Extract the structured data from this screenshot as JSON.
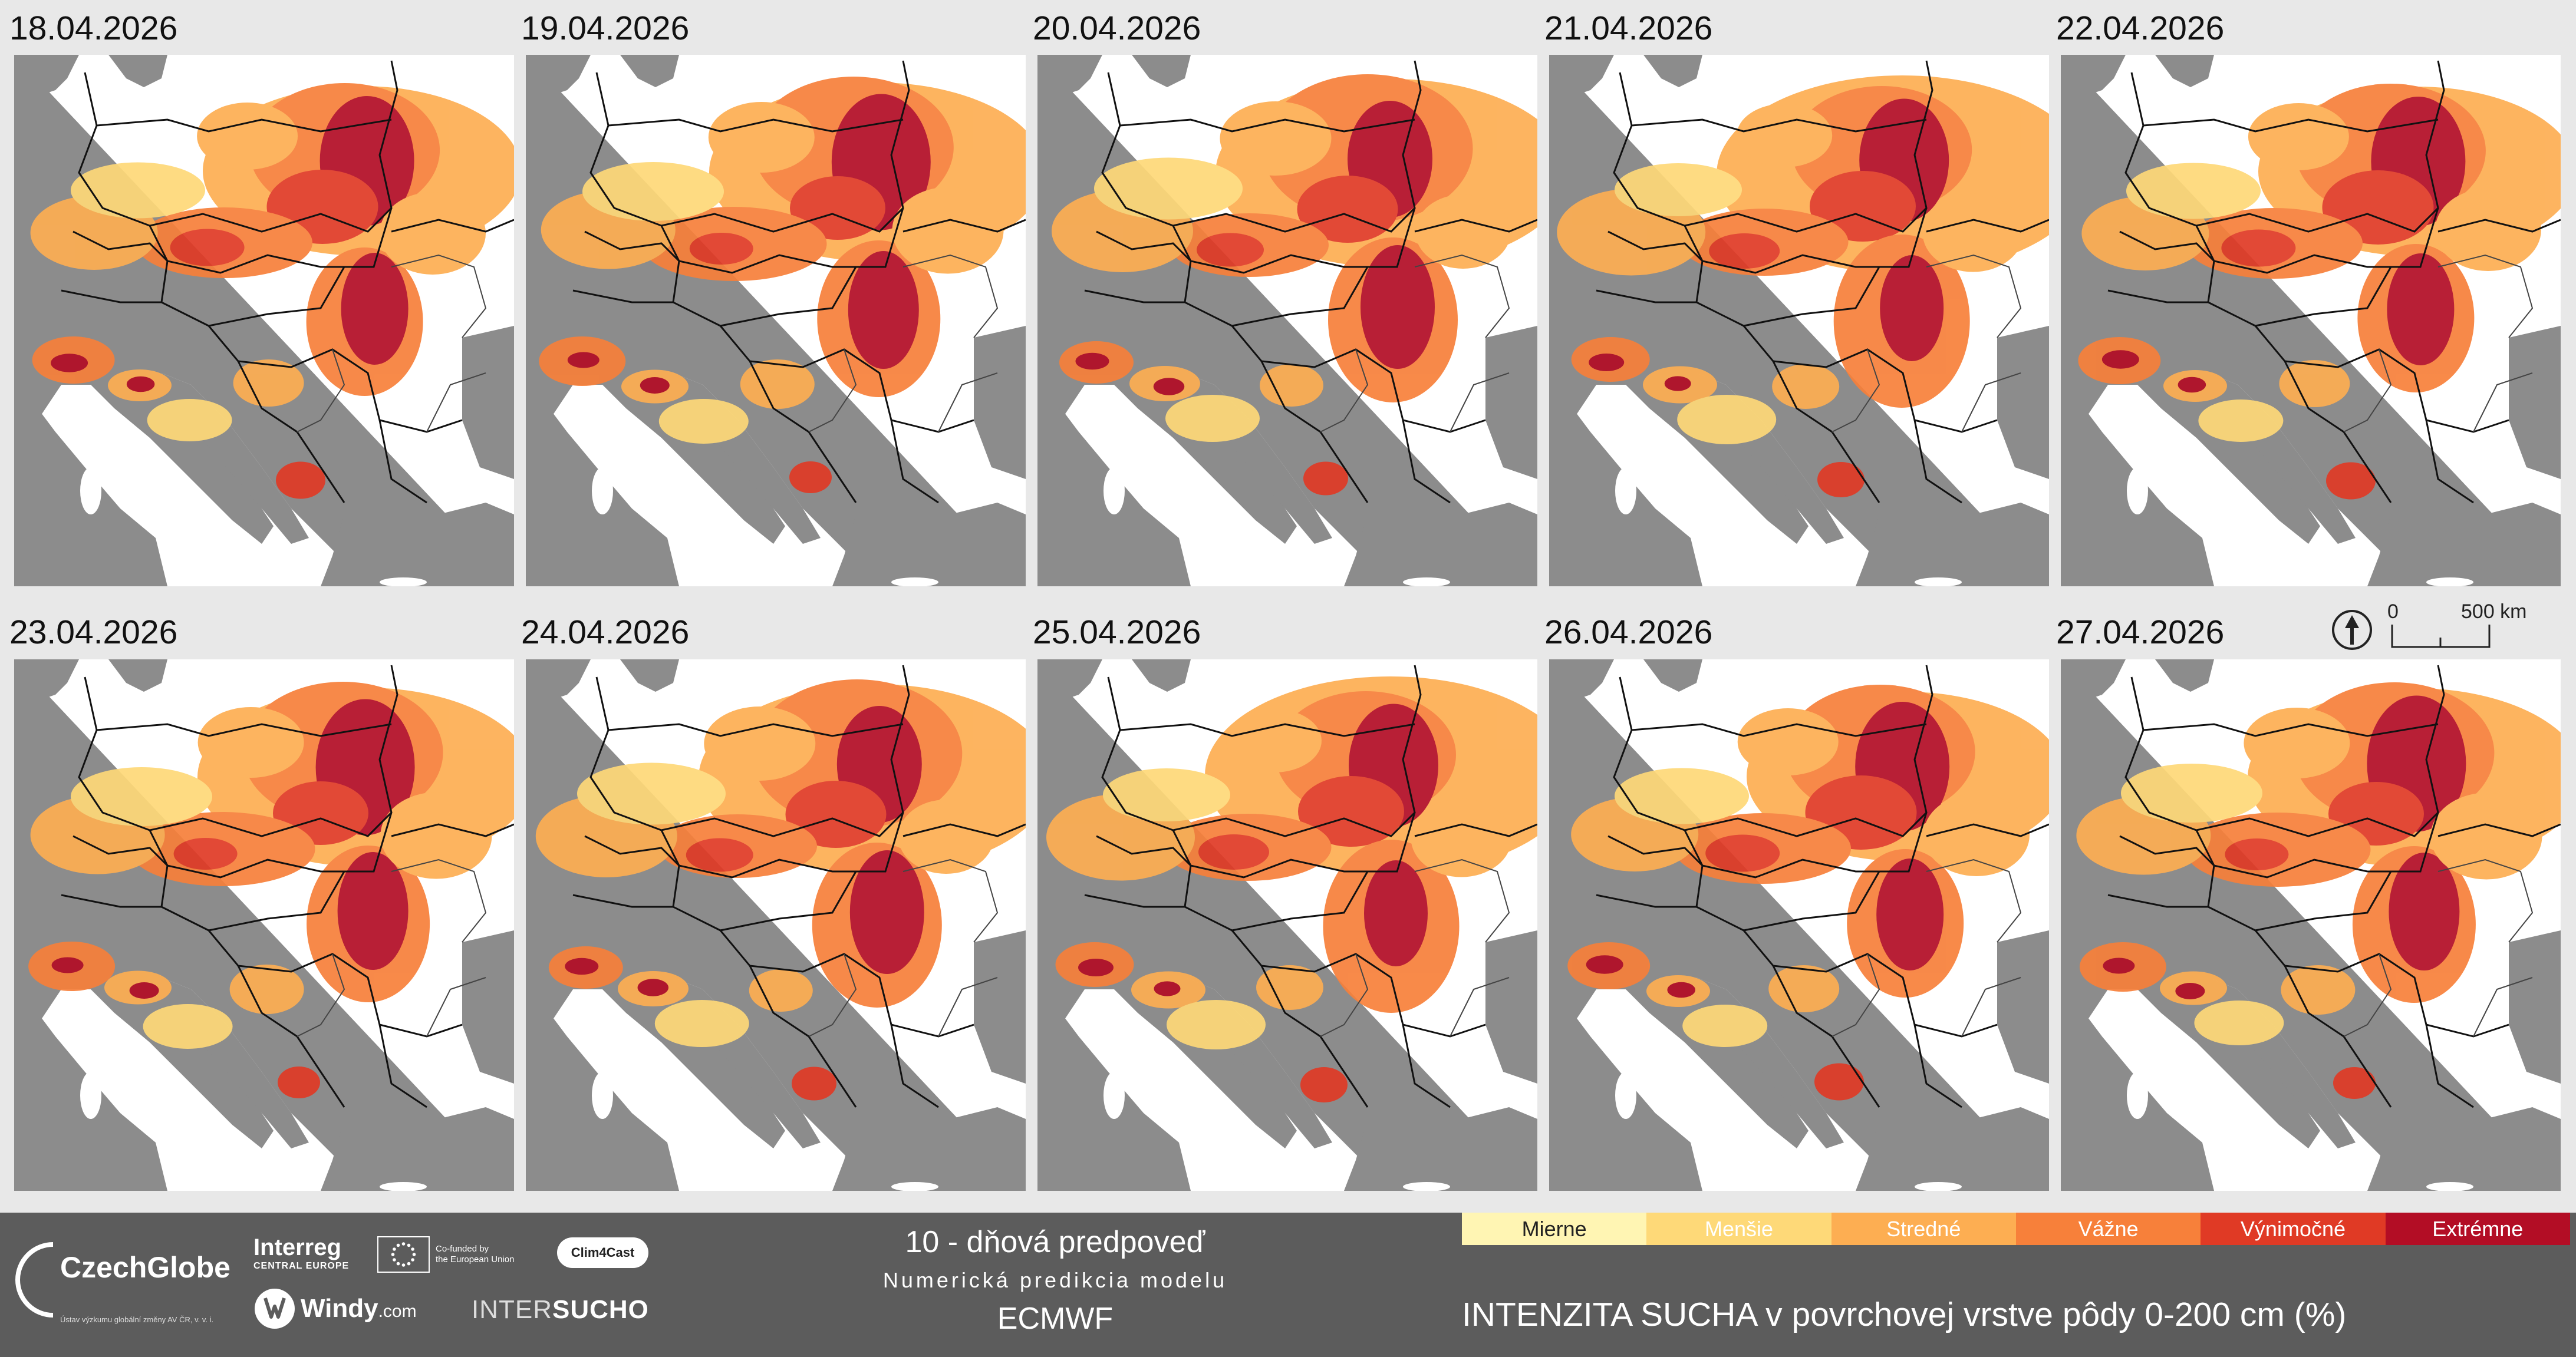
{
  "panels": [
    {
      "date": "18.04.2026"
    },
    {
      "date": "19.04.2026"
    },
    {
      "date": "20.04.2026"
    },
    {
      "date": "21.04.2026"
    },
    {
      "date": "22.04.2026"
    },
    {
      "date": "23.04.2026"
    },
    {
      "date": "24.04.2026"
    },
    {
      "date": "25.04.2026"
    },
    {
      "date": "26.04.2026"
    },
    {
      "date": "27.04.2026"
    }
  ],
  "scale": {
    "zero": "0",
    "distance": "500 km",
    "north_icon": "north-arrow-icon"
  },
  "footer": {
    "czechglobe": {
      "name": "CzechGlobe",
      "subtitle": "Ústav výzkumu globální změny AV ČR, v. v. i."
    },
    "interreg": {
      "name": "Interreg",
      "sub": "CENTRAL EUROPE"
    },
    "eu": {
      "line1": "Co-funded by",
      "line2": "the European Union"
    },
    "clim4cast": "Clim4Cast",
    "windy": {
      "name": "Windy",
      "suffix": ".com"
    },
    "intersucho": {
      "prefix": "INTER",
      "bold": "SUCHO"
    },
    "forecast": {
      "title": "10 - dňová predpoveď",
      "subtitle": "Numerická predikcia modelu",
      "model": "ECMWF"
    }
  },
  "legend": {
    "title": "INTENZITA SUCHA v povrchovej vrstve pôdy 0-200 cm (%)",
    "categories": [
      {
        "label": "Mierne",
        "color": "#fff5b3"
      },
      {
        "label": "Menšie",
        "color": "#fed978"
      },
      {
        "label": "Stredné",
        "color": "#fdae52"
      },
      {
        "label": "Vážne",
        "color": "#f7803a"
      },
      {
        "label": "Výnimočné",
        "color": "#e03a25"
      },
      {
        "label": "Extrémne",
        "color": "#b30d25"
      }
    ]
  },
  "colors": {
    "sea": "#8c8c8c",
    "land": "#ffffff",
    "background": "#e8e8e8",
    "footer": "#5c5c5c"
  }
}
